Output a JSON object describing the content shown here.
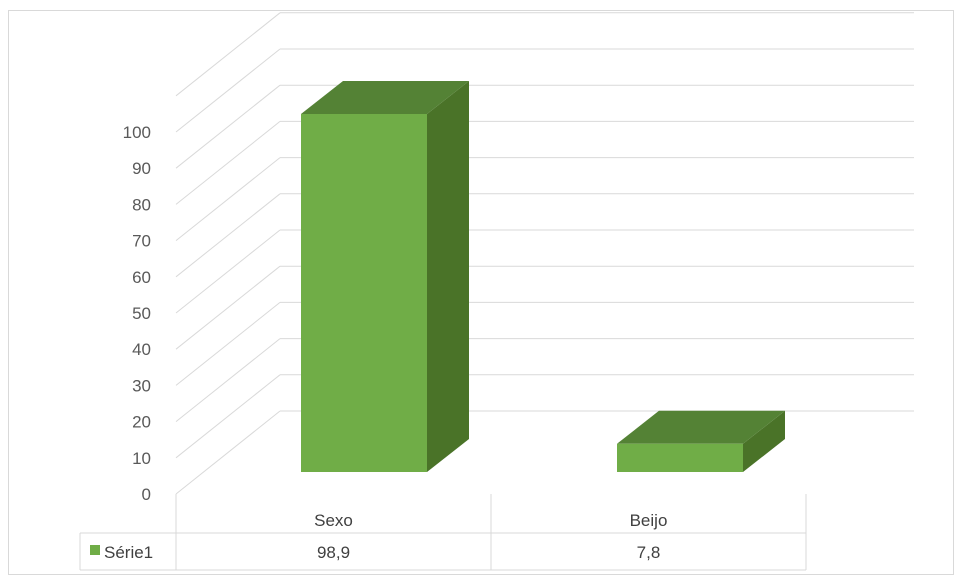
{
  "chart_data": {
    "type": "bar",
    "categories": [
      "Sexo",
      "Beijo"
    ],
    "series": [
      {
        "name": "Série1",
        "values": [
          98.9,
          7.8
        ],
        "value_labels": [
          "98,9",
          "7,8"
        ],
        "color": "#70ad47"
      }
    ],
    "ylim": [
      0,
      100
    ],
    "yticks": [
      "0",
      "10",
      "20",
      "30",
      "40",
      "50",
      "60",
      "70",
      "80",
      "90",
      "100"
    ],
    "grid": true,
    "style": "3d-column",
    "legend": "data-table",
    "colors": {
      "front": "#70ad47",
      "side": "#4a7328",
      "top": "#548235",
      "grid": "#d9d9d9",
      "text": "#595959"
    }
  }
}
